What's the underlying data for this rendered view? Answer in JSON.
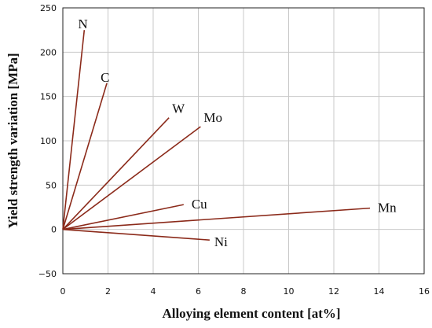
{
  "chart_data": {
    "type": "line",
    "title": "",
    "xlabel": "Alloying element content [at%]",
    "ylabel": "Yield strength variation [MPa]",
    "xlim": [
      0,
      16
    ],
    "ylim": [
      -50,
      250
    ],
    "xticks": [
      0,
      2,
      4,
      6,
      8,
      10,
      12,
      14,
      16
    ],
    "yticks": [
      -50,
      0,
      50,
      100,
      150,
      200,
      250
    ],
    "grid": true,
    "line_color": "#8b2a1a",
    "series": [
      {
        "name": "N",
        "x": [
          0,
          0.95
        ],
        "y": [
          0,
          225
        ]
      },
      {
        "name": "C",
        "x": [
          0,
          1.95
        ],
        "y": [
          0,
          165
        ]
      },
      {
        "name": "W",
        "x": [
          0,
          4.7
        ],
        "y": [
          0,
          126
        ]
      },
      {
        "name": "Mo",
        "x": [
          0,
          6.1
        ],
        "y": [
          0,
          116
        ]
      },
      {
        "name": "Cu",
        "x": [
          0,
          5.35
        ],
        "y": [
          0,
          28
        ]
      },
      {
        "name": "Mn",
        "x": [
          0,
          13.6
        ],
        "y": [
          0,
          24
        ]
      },
      {
        "name": "Ni",
        "x": [
          0,
          6.5
        ],
        "y": [
          0,
          -12
        ]
      }
    ]
  }
}
